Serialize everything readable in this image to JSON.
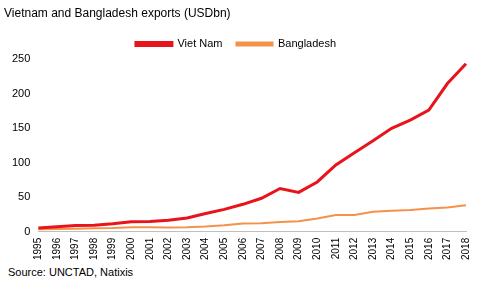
{
  "chart_data": {
    "type": "line",
    "title": "Vietnam and Bangladesh exports (USDbn)",
    "categories": [
      "1995",
      "1996",
      "1997",
      "1998",
      "1999",
      "2000",
      "2001",
      "2002",
      "2003",
      "2004",
      "2005",
      "2006",
      "2007",
      "2008",
      "2009",
      "2010",
      "2011",
      "2012",
      "2013",
      "2014",
      "2015",
      "2016",
      "2017",
      "2018"
    ],
    "series": [
      {
        "name": "Viet Nam",
        "color": "#e8141c",
        "values": [
          5.5,
          7.3,
          9.2,
          9.4,
          11.5,
          14.5,
          15,
          16.7,
          20,
          26.5,
          32.4,
          39.8,
          48.6,
          62.7,
          57.1,
          72.2,
          96.9,
          114.5,
          132,
          150,
          162,
          176.6,
          215,
          243.7
        ]
      },
      {
        "name": "Bangladesh",
        "color": "#f4914a",
        "values": [
          3.5,
          3.9,
          4.4,
          5.1,
          5.3,
          6.4,
          6.5,
          6,
          6.5,
          7.6,
          9.3,
          11.8,
          12.5,
          14.1,
          15.1,
          19.2,
          24.3,
          24.3,
          29,
          30.4,
          31.7,
          33.6,
          35.3,
          38.6
        ]
      }
    ],
    "ylim": [
      0,
      250
    ],
    "yticks": [
      0,
      50,
      100,
      150,
      200,
      250
    ],
    "grid": false,
    "legend": "top",
    "annotations": [
      "Source: UNCTAD, Natixis"
    ]
  }
}
